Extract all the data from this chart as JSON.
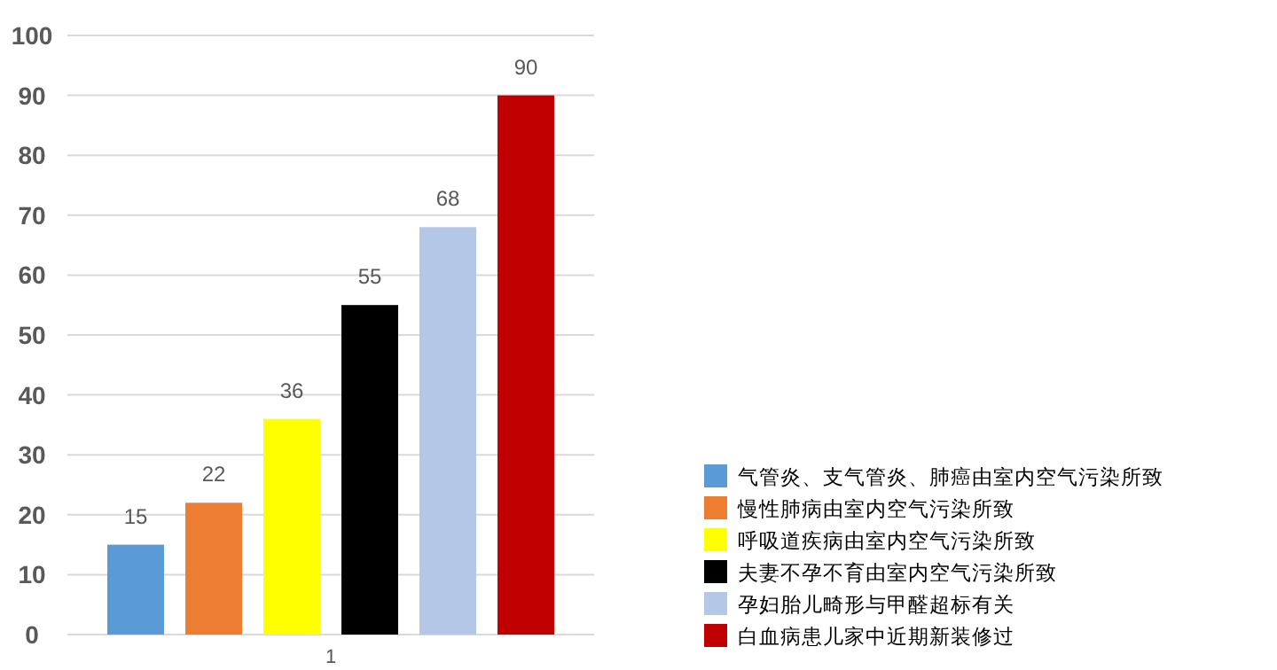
{
  "chart_data": {
    "type": "bar",
    "categories": [
      "1"
    ],
    "series": [
      {
        "name": "气管炎、支气管炎、肺癌由室内空气污染所致",
        "color": "#5b9bd5",
        "values": [
          15
        ]
      },
      {
        "name": "慢性肺病由室内空气污染所致",
        "color": "#ed7d31",
        "values": [
          22
        ]
      },
      {
        "name": "呼吸道疾病由室内空气污染所致",
        "color": "#ffff00",
        "values": [
          36
        ]
      },
      {
        "name": "夫妻不孕不育由室内空气污染所致",
        "color": "#000000",
        "values": [
          55
        ]
      },
      {
        "name": "孕妇胎儿畸形与甲醛超标有关",
        "color": "#b4c7e7",
        "values": [
          68
        ]
      },
      {
        "name": "白血病患儿家中近期新装修过",
        "color": "#c00000",
        "values": [
          90
        ]
      }
    ],
    "ylim": [
      0,
      100
    ],
    "yticks": [
      0,
      10,
      20,
      30,
      40,
      50,
      60,
      70,
      80,
      90,
      100
    ],
    "grid": "y",
    "data_labels": true,
    "legend": "bottom right"
  }
}
